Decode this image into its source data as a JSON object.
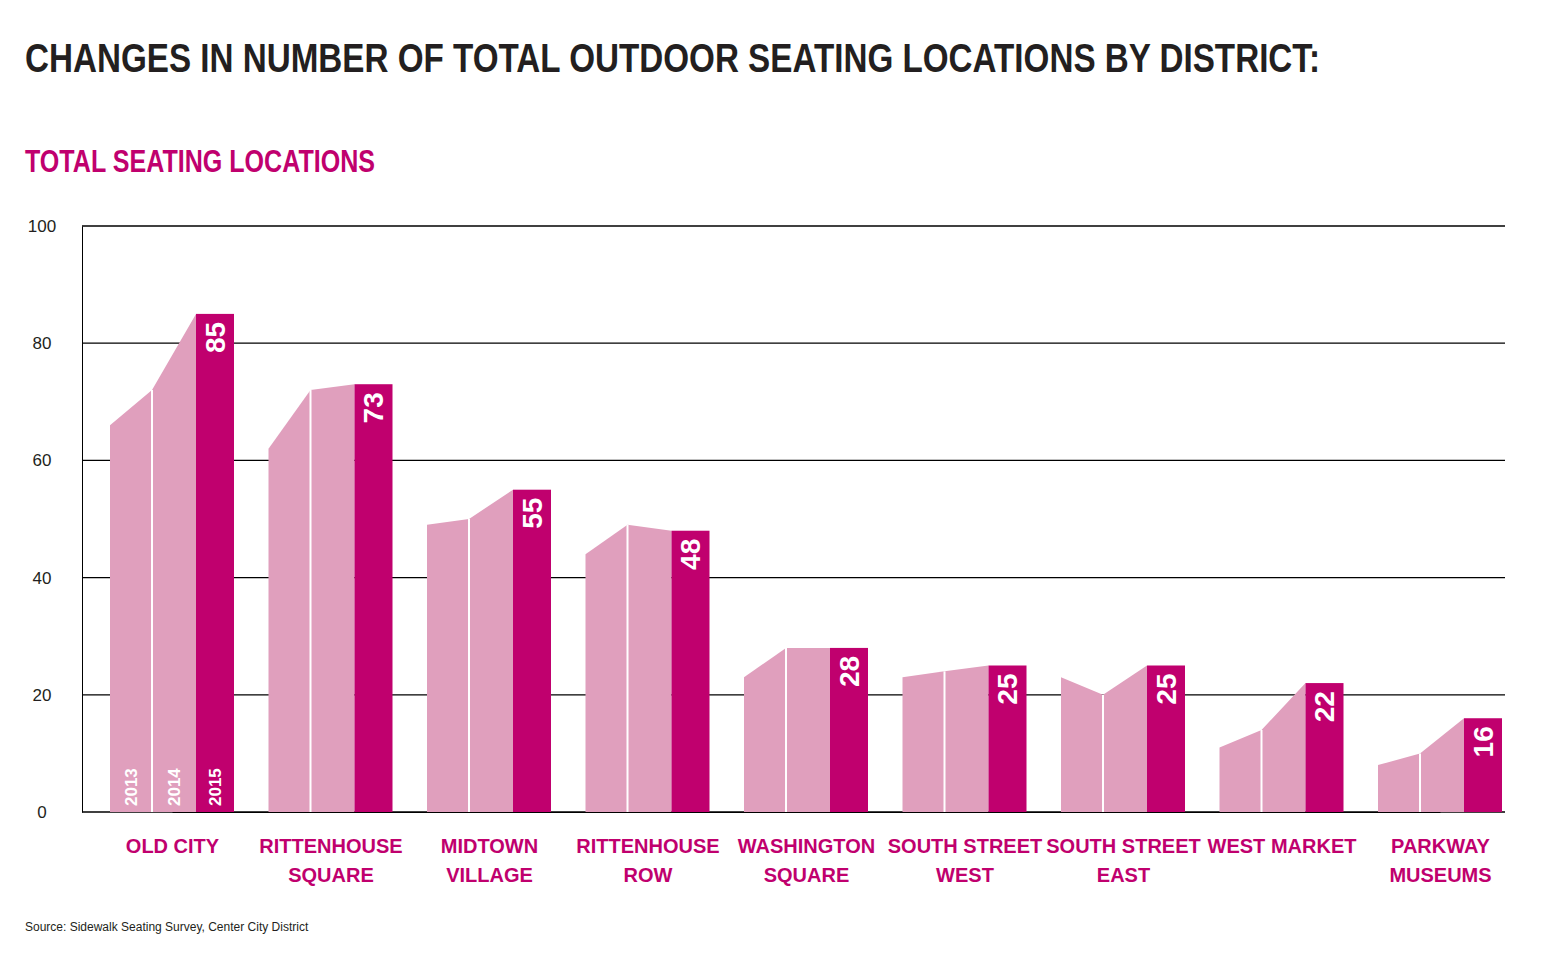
{
  "chart_data": {
    "type": "bar",
    "title": "CHANGES IN NUMBER OF TOTAL OUTDOOR SEATING LOCATIONS BY DISTRICT:",
    "subtitle": "TOTAL SEATING LOCATIONS",
    "source": "Source: Sidewalk Seating Survey, Center City District",
    "categories": [
      "OLD CITY",
      "RITTENHOUSE\nSQUARE",
      "MIDTOWN\nVILLAGE",
      "RITTENHOUSE\nROW",
      "WASHINGTON\nSQUARE",
      "SOUTH STREET\nWEST",
      "SOUTH STREET\nEAST",
      "WEST MARKET",
      "PARKWAY\nMUSEUMS"
    ],
    "series": [
      {
        "name": "2013",
        "type": "area",
        "color": "#e09fbd",
        "values": [
          66,
          62,
          49,
          44,
          23,
          23,
          23,
          11,
          8
        ]
      },
      {
        "name": "2014",
        "type": "area",
        "color": "#e09fbd",
        "values": [
          72,
          72,
          50,
          49,
          28,
          24,
          20,
          14,
          10
        ]
      },
      {
        "name": "2015",
        "type": "bar",
        "color": "#c0006e",
        "values": [
          85,
          73,
          55,
          48,
          28,
          25,
          25,
          22,
          16
        ]
      }
    ],
    "ylim": [
      0,
      100
    ],
    "yticks": [
      0,
      20,
      40,
      60,
      80,
      100
    ],
    "grid": true,
    "data_labels": true
  }
}
